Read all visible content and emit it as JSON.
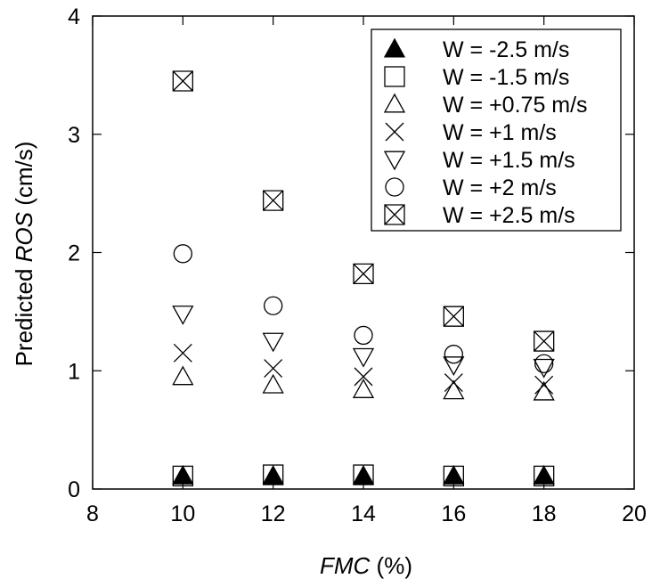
{
  "chart_data": {
    "type": "scatter",
    "xlabel": {
      "italic": "FMC",
      "rest": " (%)"
    },
    "ylabel": {
      "prefix": "Predicted ",
      "italic": "ROS",
      "suffix": " (cm/s)"
    },
    "xlim": [
      8,
      20
    ],
    "ylim": [
      0,
      4
    ],
    "xticks": [
      8,
      10,
      12,
      14,
      16,
      18,
      20
    ],
    "yticks": [
      0,
      1,
      2,
      3,
      4
    ],
    "grid": false,
    "legend_position": "top-right",
    "x": [
      10,
      12,
      14,
      16,
      18
    ],
    "series": [
      {
        "name": "W = -2.5 m/s",
        "marker": "triangle-up-filled",
        "values": [
          0.11,
          0.11,
          0.11,
          0.11,
          0.11
        ]
      },
      {
        "name": "W = -1.5 m/s",
        "marker": "square-open",
        "values": [
          0.11,
          0.12,
          0.12,
          0.11,
          0.11
        ]
      },
      {
        "name": "W = +0.75 m/s",
        "marker": "triangle-up-open",
        "values": [
          0.95,
          0.88,
          0.84,
          0.83,
          0.82
        ]
      },
      {
        "name": "W = +1 m/s",
        "marker": "x",
        "values": [
          1.15,
          1.02,
          0.95,
          0.9,
          0.88
        ]
      },
      {
        "name": "W = +1.5 m/s",
        "marker": "triangle-down-open",
        "values": [
          1.48,
          1.25,
          1.12,
          1.05,
          1.03
        ]
      },
      {
        "name": "W = +2 m/s",
        "marker": "circle-open",
        "values": [
          1.99,
          1.55,
          1.3,
          1.14,
          1.06
        ]
      },
      {
        "name": "W = +2.5 m/s",
        "marker": "square-x",
        "values": [
          3.45,
          2.44,
          1.82,
          1.46,
          1.25
        ]
      }
    ]
  }
}
